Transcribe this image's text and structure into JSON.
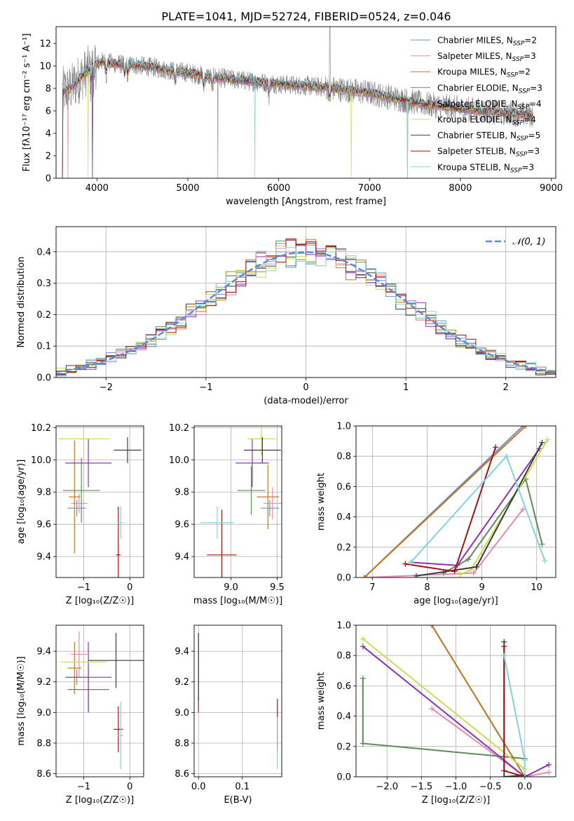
{
  "figure_title": "PLATE=1041, MJD=52724, FIBERID=0524, z=0.046",
  "models": [
    {
      "name": "Chabrier MILES",
      "nssp": "2",
      "color": "#6b8fd6"
    },
    {
      "name": "Salpeter MILES",
      "nssp": "3",
      "color": "#e58ab5"
    },
    {
      "name": "Kroupa MILES",
      "nssp": "2",
      "color": "#c57a1a"
    },
    {
      "name": "Chabrier ELODIE",
      "nssp": "3",
      "color": "#5e8a5e"
    },
    {
      "name": "Salpeter ELODIE",
      "nssp": "4",
      "color": "#8e32b8"
    },
    {
      "name": "Kroupa ELODIE",
      "nssp": "4",
      "color": "#c9e04a"
    },
    {
      "name": "Chabrier STELIB",
      "nssp": "5",
      "color": "#3d3d3d"
    },
    {
      "name": "Salpeter STELIB",
      "nssp": "3",
      "color": "#a81111"
    },
    {
      "name": "Kroupa STELIB",
      "nssp": "3",
      "color": "#7fd6dc"
    }
  ],
  "chart_data": [
    {
      "id": "spectrum",
      "type": "line",
      "xlabel": "wavelength [Angstrom, rest frame]",
      "ylabel": "Flux [fλ10⁻¹⁷ erg cm⁻² s⁻¹ A⁻¹]",
      "xlim": [
        3550,
        9050
      ],
      "ylim": [
        0,
        13.5
      ],
      "xticks": [
        4000,
        5000,
        6000,
        7000,
        8000,
        9000
      ],
      "yticks": [
        0,
        2,
        4,
        6,
        8,
        10,
        12
      ],
      "grid": false,
      "legend": "top-right",
      "observed_color": "#808080",
      "continuum_x": [
        3620,
        3700,
        3800,
        3900,
        3960,
        4050,
        4200,
        4400,
        4600,
        4800,
        5000,
        5200,
        5500,
        6000,
        6500,
        7000,
        7300,
        7600,
        8000,
        8400,
        8800
      ],
      "continuum_y": [
        7.8,
        7.9,
        8.8,
        9.6,
        10.0,
        10.4,
        10.2,
        10.1,
        9.9,
        9.6,
        9.4,
        9.1,
        8.8,
        8.4,
        8.1,
        7.6,
        7.1,
        6.6,
        6.2,
        5.9,
        5.6
      ]
    },
    {
      "id": "residuals",
      "type": "line",
      "xlabel": "(data-model)/error",
      "ylabel": "Normed distribution",
      "xlim": [
        -2.5,
        2.5
      ],
      "ylim": [
        0,
        0.48
      ],
      "xticks": [
        -2,
        -1,
        0,
        1,
        2
      ],
      "yticks": [
        0.0,
        0.1,
        0.2,
        0.3,
        0.4
      ],
      "grid": true,
      "legend": "top-right",
      "gaussian_label": "𝒩(0, 1)",
      "gaussian_color": "#5b8bd6",
      "bin_width": 0.1
    },
    {
      "id": "age_vs_Z",
      "type": "scatter",
      "xlabel": "Z [log₁₀(Z/Z☉)]",
      "ylabel": "age  [log₁₀(age/yr)]",
      "xlim": [
        -1.6,
        0.3
      ],
      "ylim": [
        9.27,
        10.21
      ],
      "xticks": [
        -1,
        0
      ],
      "yticks": [
        9.4,
        9.6,
        9.8,
        10.0,
        10.2
      ],
      "grid": true,
      "points": [
        {
          "x": -1.15,
          "y": 9.7,
          "xe": 0.2,
          "ye": 0.05
        },
        {
          "x": -1.1,
          "y": 9.73,
          "xe": 0.18,
          "ye": 0.06
        },
        {
          "x": -1.2,
          "y": 9.77,
          "xe": 0.12,
          "ye": 0.35
        },
        {
          "x": -1.05,
          "y": 9.81,
          "xe": 0.4,
          "ye": 0.2
        },
        {
          "x": -0.9,
          "y": 9.98,
          "xe": 0.5,
          "ye": 0.15
        },
        {
          "x": -1.0,
          "y": 10.13,
          "xe": 0.55,
          "ye": 0.15
        },
        {
          "x": -0.05,
          "y": 10.06,
          "xe": 0.3,
          "ye": 0.08
        },
        {
          "x": -0.25,
          "y": 9.41,
          "xe": 0.05,
          "ye": 0.3
        },
        {
          "x": -0.2,
          "y": 9.61,
          "xe": 0.07,
          "ye": 0.1
        }
      ]
    },
    {
      "id": "age_vs_mass",
      "type": "scatter",
      "xlabel": "mass [log₁₀(M/M☉)]",
      "ylabel": "",
      "xlim": [
        8.6,
        9.55
      ],
      "ylim": [
        9.27,
        10.21
      ],
      "xticks": [
        9.0,
        9.5
      ],
      "yticks": [
        9.4,
        9.6,
        9.8,
        10.0,
        10.2
      ],
      "grid": true,
      "points": [
        {
          "x": 9.42,
          "y": 9.7,
          "xe": 0.1,
          "ye": 0.05
        },
        {
          "x": 9.45,
          "y": 9.73,
          "xe": 0.1,
          "ye": 0.1
        },
        {
          "x": 9.4,
          "y": 9.77,
          "xe": 0.12,
          "ye": 0.2
        },
        {
          "x": 9.22,
          "y": 9.81,
          "xe": 0.15,
          "ye": 0.15
        },
        {
          "x": 9.23,
          "y": 9.98,
          "xe": 0.18,
          "ye": 0.15
        },
        {
          "x": 9.33,
          "y": 10.13,
          "xe": 0.15,
          "ye": 0.1
        },
        {
          "x": 9.34,
          "y": 10.06,
          "xe": 0.2,
          "ye": 0.08
        },
        {
          "x": 8.9,
          "y": 9.41,
          "xe": 0.16,
          "ye": 0.28
        },
        {
          "x": 8.85,
          "y": 9.61,
          "xe": 0.18,
          "ye": 0.1
        }
      ]
    },
    {
      "id": "weight_vs_age",
      "type": "line",
      "xlabel": "age  [log₁₀(age/yr)]",
      "ylabel": "mass weight",
      "xlim": [
        6.7,
        10.35
      ],
      "ylim": [
        0,
        1
      ],
      "xticks": [
        7,
        8,
        9,
        10
      ],
      "yticks": [
        0.0,
        0.2,
        0.4,
        0.6,
        0.8,
        1.0
      ],
      "grid": true,
      "series": [
        {
          "x": [
            6.85,
            9.75
          ],
          "y": [
            0,
            1
          ]
        },
        {
          "x": [
            6.9,
            8.85,
            9.75
          ],
          "y": [
            0,
            0.03,
            0.45
          ]
        },
        {
          "x": [
            6.85,
            9.8
          ],
          "y": [
            0,
            1
          ]
        },
        {
          "x": [
            8.3,
            8.75,
            9.8,
            10.1
          ],
          "y": [
            0.03,
            0.12,
            0.65,
            0.22
          ]
        },
        {
          "x": [
            7.7,
            8.55,
            10.05
          ],
          "y": [
            0.1,
            0.08,
            0.85
          ]
        },
        {
          "x": [
            8.6,
            8.8,
            10.2
          ],
          "y": [
            0.02,
            0.05,
            0.91
          ]
        },
        {
          "x": [
            7.8,
            8.9,
            10.1
          ],
          "y": [
            0.01,
            0.07,
            0.89
          ]
        },
        {
          "x": [
            7.6,
            8.5,
            9.25
          ],
          "y": [
            0.09,
            0.04,
            0.86
          ]
        },
        {
          "x": [
            7.7,
            9.45,
            10.15
          ],
          "y": [
            0.1,
            0.8,
            0.11
          ]
        }
      ]
    },
    {
      "id": "mass_vs_Z",
      "type": "scatter",
      "xlabel": "Z [log₁₀(Z/Z☉)]",
      "ylabel": "mass [log₁₀(M/M☉)]",
      "xlim": [
        -1.6,
        0.3
      ],
      "ylim": [
        8.58,
        9.57
      ],
      "xticks": [
        -1,
        0
      ],
      "yticks": [
        8.6,
        8.8,
        9.0,
        9.2,
        9.4
      ],
      "grid": true,
      "points": [
        {
          "x": -1.15,
          "y": 9.23,
          "xe": 0.2,
          "ye": 0.05
        },
        {
          "x": -1.1,
          "y": 9.38,
          "xe": 0.18,
          "ye": 0.15
        },
        {
          "x": -1.2,
          "y": 9.29,
          "xe": 0.15,
          "ye": 0.17
        },
        {
          "x": -0.9,
          "y": 9.15,
          "xe": 0.45,
          "ye": 0.15
        },
        {
          "x": -0.9,
          "y": 9.23,
          "xe": 0.5,
          "ye": 0.23
        },
        {
          "x": -1.0,
          "y": 9.33,
          "xe": 0.5,
          "ye": 0.1
        },
        {
          "x": -0.3,
          "y": 9.34,
          "xe": 0.6,
          "ye": 0.18
        },
        {
          "x": -0.25,
          "y": 8.89,
          "xe": 0.1,
          "ye": 0.15
        },
        {
          "x": -0.2,
          "y": 8.85,
          "xe": 0.06,
          "ye": 0.22
        }
      ]
    },
    {
      "id": "mass_vs_ebv",
      "type": "scatter",
      "xlabel": "E(B-V)",
      "ylabel": "",
      "xlim": [
        -0.01,
        0.19
      ],
      "ylim": [
        8.58,
        9.57
      ],
      "xticks": [
        0.0,
        0.1
      ],
      "yticks": [
        8.6,
        8.8,
        9.0,
        9.2,
        9.4
      ],
      "grid": true,
      "points": [
        {
          "x": 0.0,
          "y": 9.3,
          "xe": 0.0,
          "ye": 0.22
        },
        {
          "x": 0.0,
          "y": 9.22,
          "xe": 0.0,
          "ye": 0.22
        },
        {
          "x": 0.0,
          "y": 9.2,
          "xe": 0.0,
          "ye": 0.2
        },
        {
          "x": 0.0,
          "y": 9.25,
          "xe": 0.0,
          "ye": 0.2
        },
        {
          "x": 0.0,
          "y": 9.2,
          "xe": 0.0,
          "ye": 0.2
        },
        {
          "x": 0.0,
          "y": 9.3,
          "xe": 0.0,
          "ye": 0.2
        },
        {
          "x": 0.0,
          "y": 9.3,
          "xe": 0.0,
          "ye": 0.22
        },
        {
          "x": 0.18,
          "y": 8.92,
          "xe": 0.0,
          "ye": 0.17
        },
        {
          "x": 0.18,
          "y": 8.8,
          "xe": 0.0,
          "ye": 0.17
        }
      ]
    },
    {
      "id": "weight_vs_Z",
      "type": "line",
      "xlabel": "Z [log₁₀(Z/Z☉)]",
      "ylabel": "mass weight",
      "xlim": [
        -2.45,
        0.45
      ],
      "ylim": [
        0,
        1
      ],
      "xticks": [
        -2.0,
        -1.5,
        -1.0,
        -0.5,
        0.0
      ],
      "yticks": [
        0.0,
        0.2,
        0.4,
        0.6,
        0.8,
        1.0
      ],
      "grid": true,
      "series": [
        {
          "x": [
            -1.35,
            0.0
          ],
          "y": [
            1.0,
            0.0
          ]
        },
        {
          "x": [
            -1.35,
            0.0,
            0.35
          ],
          "y": [
            0.45,
            0.0,
            0.03
          ]
        },
        {
          "x": [
            -1.35,
            0.0
          ],
          "y": [
            1.0,
            0.0
          ]
        },
        {
          "x": [
            -2.35,
            -2.35,
            0.0
          ],
          "y": [
            0.65,
            0.22,
            0.12
          ]
        },
        {
          "x": [
            -2.35,
            0.0,
            0.35
          ],
          "y": [
            0.86,
            0.0,
            0.08
          ]
        },
        {
          "x": [
            -2.35,
            0.0
          ],
          "y": [
            0.91,
            0.05
          ]
        },
        {
          "x": [
            -0.3,
            -0.3,
            0.0
          ],
          "y": [
            0.89,
            0.0,
            0.01
          ]
        },
        {
          "x": [
            -0.3,
            -0.3,
            0.0
          ],
          "y": [
            0.86,
            0.04,
            0.0
          ]
        },
        {
          "x": [
            -0.3,
            0.0,
            0.0
          ],
          "y": [
            0.8,
            0.11,
            0.0
          ]
        }
      ]
    }
  ]
}
